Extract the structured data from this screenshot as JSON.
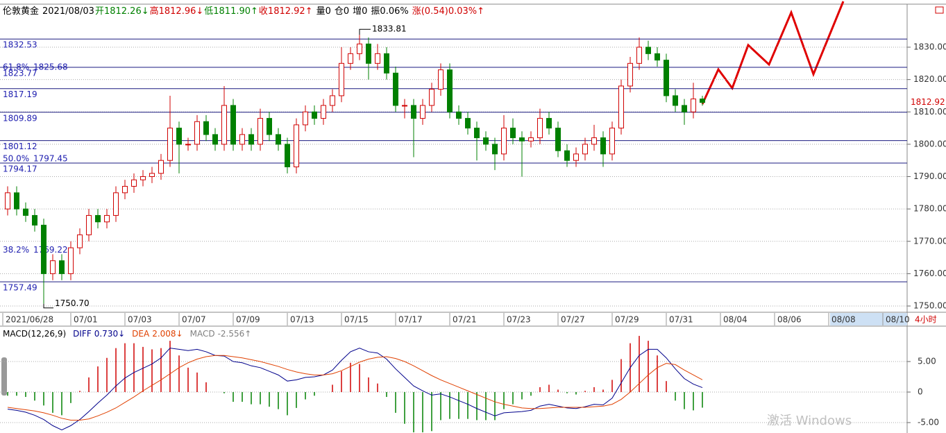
{
  "header": {
    "items": [
      {
        "text": "伦敦黄金",
        "color": "#000000"
      },
      {
        "text": "2021/08/03",
        "color": "#000000"
      },
      {
        "text": "开1812.26↓",
        "color": "#008000"
      },
      {
        "text": "高1812.96↓",
        "color": "#d00000"
      },
      {
        "text": "低1811.90↑",
        "color": "#008000"
      },
      {
        "text": "收1812.92↑",
        "color": "#d00000"
      },
      {
        "text": "量0",
        "color": "#000000"
      },
      {
        "text": "仓0",
        "color": "#000000"
      },
      {
        "text": "增0",
        "color": "#000000"
      },
      {
        "text": "振0.06%",
        "color": "#000000"
      },
      {
        "text": "涨(0.54)0.03%↑",
        "color": "#d00000"
      }
    ]
  },
  "chart_data": [
    {
      "type": "candlestick",
      "categories": [
        "2021/06/28",
        null,
        null,
        null,
        null,
        null,
        "07/01",
        null,
        null,
        null,
        null,
        null,
        "07/03",
        null,
        null,
        null,
        null,
        null,
        "07/07",
        null,
        null,
        null,
        null,
        null,
        "07/09",
        null,
        null,
        null,
        null,
        null,
        "07/13",
        null,
        null,
        null,
        null,
        null,
        "07/15",
        null,
        null,
        null,
        null,
        null,
        "07/17",
        null,
        null,
        null,
        null,
        null,
        "07/21",
        null,
        null,
        null,
        null,
        null,
        "07/23",
        null,
        null,
        null,
        null,
        null,
        "07/27",
        null,
        null,
        null,
        null,
        null,
        "07/29",
        null,
        null,
        null,
        null,
        null,
        "07/31",
        null,
        null,
        null,
        null,
        null,
        "08/04",
        null,
        null,
        null,
        null,
        null,
        "08/06",
        null,
        null,
        null,
        null,
        null,
        "08/08",
        null,
        null,
        null,
        null,
        null,
        "08/10",
        null,
        null,
        null
      ],
      "open": [
        1780,
        1785,
        1780,
        1778,
        1775,
        1760,
        1764,
        1760,
        1768,
        1772,
        1778,
        1776,
        1778,
        1785,
        1787,
        1789,
        1790,
        1791,
        1795,
        1805,
        1800,
        1800,
        1807,
        1803,
        1800,
        1812,
        1800,
        1803,
        1800,
        1808,
        1803,
        1800,
        1793,
        1806,
        1810,
        1808,
        1812,
        1815,
        1825,
        1828,
        1831,
        1825,
        1828,
        1822,
        1812,
        1812,
        1808,
        1812,
        1817,
        1823,
        1810,
        1808,
        1805,
        1802,
        1800,
        1797,
        1805,
        1802,
        1801,
        1802,
        1808,
        1805,
        1798,
        1795,
        1797,
        1800,
        1802,
        1797,
        1805,
        1818,
        1825,
        1830,
        1828,
        1826,
        1815,
        1812,
        1810,
        1814,
        null,
        null,
        null,
        null,
        null,
        null,
        null,
        null,
        null,
        null,
        null,
        null,
        null,
        null,
        null,
        null,
        null,
        null,
        null,
        null,
        null,
        null
      ],
      "high": [
        1787,
        1787,
        1782,
        1780,
        1777,
        1766,
        1766,
        1770,
        1774,
        1780,
        1780,
        1780,
        1787,
        1789,
        1791,
        1792,
        1793,
        1797,
        1815,
        1807,
        1802,
        1809,
        1809,
        1805,
        1818,
        1814,
        1805,
        1805,
        1811,
        1810,
        1805,
        1802,
        1808,
        1812,
        1812,
        1814,
        1817,
        1830,
        1830,
        1833.81,
        1833,
        1831,
        1830,
        1824,
        1814,
        1814,
        1814,
        1819,
        1825,
        1825,
        1812,
        1810,
        1807,
        1804,
        1802,
        1809,
        1808,
        1804,
        1804,
        1811,
        1810,
        1807,
        1800,
        1799,
        1802,
        1806,
        1804,
        1807,
        1820,
        1827,
        1833,
        1832,
        1830,
        1828,
        1817,
        1814,
        1819,
        1815,
        null,
        null,
        null,
        null,
        null,
        null,
        null,
        null,
        null,
        null,
        null,
        null,
        null,
        null,
        null,
        null,
        null,
        null,
        null,
        null,
        null,
        null
      ],
      "low": [
        1778,
        1778,
        1776,
        1773,
        1750.7,
        1758,
        1758,
        1758,
        1766,
        1770,
        1774,
        1774,
        1776,
        1783,
        1785,
        1787,
        1788,
        1789,
        1793,
        1791,
        1798,
        1798,
        1801,
        1798,
        1798,
        1798,
        1798,
        1798,
        1798,
        1801,
        1798,
        1791,
        1791,
        1804,
        1806,
        1806,
        1810,
        1813,
        1823,
        1826,
        1820,
        1823,
        1820,
        1810,
        1808,
        1796,
        1806,
        1810,
        1815,
        1808,
        1806,
        1803,
        1795,
        1798,
        1792,
        1795,
        1800,
        1790,
        1799,
        1800,
        1803,
        1796,
        1793,
        1793,
        1795,
        1798,
        1793,
        1795,
        1803,
        1816,
        1823,
        1826,
        1824,
        1813,
        1810,
        1806,
        1808,
        1811.9,
        null,
        null,
        null,
        null,
        null,
        null,
        null,
        null,
        null,
        null,
        null,
        null,
        null,
        null,
        null,
        null,
        null,
        null,
        null,
        null,
        null,
        null
      ],
      "close": [
        1785,
        1780,
        1778,
        1775,
        1760,
        1764,
        1760,
        1768,
        1772,
        1778,
        1776,
        1778,
        1785,
        1787,
        1789,
        1790,
        1791,
        1795,
        1805,
        1800,
        1800,
        1807,
        1803,
        1800,
        1812,
        1800,
        1803,
        1800,
        1808,
        1803,
        1800,
        1793,
        1806,
        1810,
        1808,
        1812,
        1815,
        1825,
        1828,
        1831,
        1825,
        1828,
        1822,
        1812,
        1812,
        1808,
        1812,
        1817,
        1823,
        1810,
        1808,
        1805,
        1802,
        1800,
        1797,
        1805,
        1802,
        1801,
        1802,
        1808,
        1805,
        1798,
        1795,
        1797,
        1800,
        1802,
        1797,
        1805,
        1818,
        1825,
        1830,
        1828,
        1826,
        1815,
        1812,
        1810,
        1814,
        1812.92,
        null,
        null,
        null,
        null,
        null,
        null,
        null,
        null,
        null,
        null,
        null,
        null,
        null,
        null,
        null,
        null,
        null,
        null,
        null,
        null,
        null,
        null
      ],
      "up_color": "#d00000",
      "down_color": "#008000",
      "ylim": [
        1748.07,
        1842.87
      ],
      "yticks": [
        {
          "value": 1750,
          "label": "1750.00"
        },
        {
          "value": 1760,
          "label": "1760.00"
        },
        {
          "value": 1770,
          "label": "1770.00"
        },
        {
          "value": 1780,
          "label": "1780.00"
        },
        {
          "value": 1790,
          "label": "1790.00"
        },
        {
          "value": 1800,
          "label": "1800.00"
        },
        {
          "value": 1810,
          "label": "1810.00"
        },
        {
          "value": 1820,
          "label": "1820.00"
        },
        {
          "value": 1830,
          "label": "1830.00"
        }
      ],
      "grid": true,
      "levels": [
        1832.53,
        1823.77,
        1817.19,
        1809.89,
        1801.12,
        1794.17,
        1757.49
      ],
      "level_color": "#1a1a80",
      "fib_levels": [
        {
          "ratio": "61.8%",
          "value": 1825.68
        },
        {
          "ratio": "50.0%",
          "value": 1797.45
        },
        {
          "ratio": "38.2%",
          "value": 1769.22
        }
      ],
      "low_label": "1750.70",
      "period": "4小时"
    },
    {
      "type": "macd",
      "title": "MACD(12,26,9)",
      "series": [
        {
          "name": "DIFF",
          "value_label": "0.730↓",
          "color": "#00008b",
          "values": [
            -2.8,
            -3.0,
            -3.3,
            -3.8,
            -4.5,
            -5.5,
            -6.2,
            -5.5,
            -4.5,
            -3.2,
            -1.8,
            -0.5,
            1.0,
            2.3,
            3.2,
            3.9,
            4.6,
            5.6,
            7.2,
            7.0,
            6.8,
            7.0,
            6.6,
            6.0,
            5.9,
            5.0,
            4.8,
            4.3,
            4.0,
            3.4,
            2.8,
            1.8,
            2.0,
            2.4,
            2.5,
            2.8,
            3.6,
            5.2,
            6.6,
            7.2,
            6.6,
            6.4,
            5.4,
            3.8,
            2.4,
            1.0,
            0.2,
            -0.5,
            -0.3,
            -0.8,
            -1.4,
            -2.0,
            -2.7,
            -3.3,
            -3.9,
            -3.4,
            -3.3,
            -3.2,
            -3.0,
            -2.3,
            -2.0,
            -2.3,
            -2.6,
            -2.7,
            -2.4,
            -2.0,
            -2.1,
            -1.0,
            1.5,
            4.0,
            6.0,
            7.0,
            7.0,
            5.6,
            3.8,
            2.2,
            1.3,
            0.73,
            null,
            null,
            null,
            null,
            null,
            null,
            null,
            null,
            null,
            null,
            null,
            null,
            null,
            null,
            null,
            null,
            null,
            null,
            null,
            null,
            null,
            null
          ]
        },
        {
          "name": "DEA",
          "value_label": "2.008↓",
          "color": "#e04000",
          "values": [
            -2.5,
            -2.7,
            -2.9,
            -3.1,
            -3.4,
            -3.8,
            -4.3,
            -4.6,
            -4.6,
            -4.4,
            -3.9,
            -3.3,
            -2.6,
            -1.7,
            -0.8,
            0.2,
            1.1,
            2.0,
            3.0,
            4.0,
            4.8,
            5.4,
            5.8,
            6.0,
            6.0,
            5.8,
            5.6,
            5.3,
            5.0,
            4.6,
            4.2,
            3.7,
            3.3,
            3.0,
            2.8,
            2.8,
            3.0,
            3.5,
            4.2,
            4.9,
            5.4,
            5.7,
            5.8,
            5.5,
            5.0,
            4.3,
            3.5,
            2.7,
            2.0,
            1.4,
            0.8,
            0.2,
            -0.4,
            -1.0,
            -1.6,
            -2.0,
            -2.3,
            -2.6,
            -2.7,
            -2.7,
            -2.6,
            -2.5,
            -2.5,
            -2.5,
            -2.5,
            -2.4,
            -2.3,
            -2.0,
            -1.2,
            0.0,
            1.4,
            2.8,
            4.0,
            4.7,
            4.5,
            3.6,
            2.8,
            2.008,
            null,
            null,
            null,
            null,
            null,
            null,
            null,
            null,
            null,
            null,
            null,
            null,
            null,
            null,
            null,
            null,
            null,
            null,
            null,
            null,
            null,
            null
          ]
        },
        {
          "name": "MACD",
          "value_label": "-2.556↑",
          "color": "#808080",
          "up_color": "#d00000",
          "down_color": "#008000",
          "values": [
            -0.6,
            -0.6,
            -0.8,
            -1.4,
            -2.2,
            -3.4,
            -3.8,
            -1.8,
            0.2,
            2.4,
            4.2,
            5.6,
            7.2,
            8.0,
            8.0,
            7.4,
            7.0,
            7.2,
            8.4,
            6.0,
            4.0,
            3.2,
            1.6,
            0,
            -0.2,
            -1.6,
            -1.6,
            -2.0,
            -2.0,
            -2.4,
            -2.8,
            -3.8,
            -2.6,
            -1.2,
            -0.6,
            0,
            1.2,
            3.4,
            4.8,
            4.6,
            2.4,
            1.4,
            -0.8,
            -3.4,
            -5.2,
            -6.6,
            -6.6,
            -6.4,
            -4.6,
            -4.4,
            -4.4,
            -4.4,
            -4.6,
            -4.6,
            -4.6,
            -2.8,
            -2.0,
            -1.2,
            -0.6,
            0.8,
            1.2,
            0.4,
            -0.2,
            -0.4,
            0.2,
            0.8,
            0.4,
            2.0,
            5.4,
            8.0,
            9.2,
            8.4,
            6.0,
            1.8,
            -1.4,
            -2.8,
            -3.0,
            -2.556,
            null,
            null,
            null,
            null,
            null,
            null,
            null,
            null,
            null,
            null,
            null,
            null,
            null,
            null,
            null,
            null,
            null,
            null,
            null,
            null,
            null,
            null
          ]
        }
      ],
      "ylim": [
        -6.48,
        10.8
      ],
      "yticks": [
        {
          "value": 5,
          "label": "5.00"
        },
        0,
        {
          "value": -5,
          "label": "-5.00"
        }
      ]
    }
  ],
  "watermark": "激活 Windows"
}
